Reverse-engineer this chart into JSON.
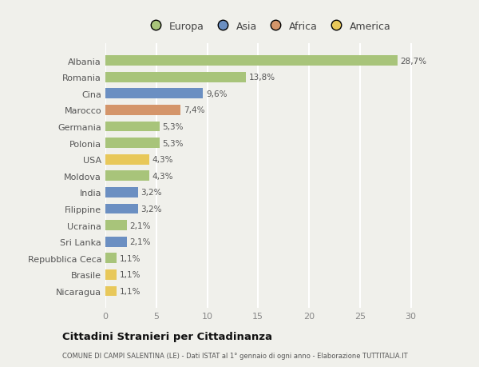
{
  "categories": [
    "Albania",
    "Romania",
    "Cina",
    "Marocco",
    "Germania",
    "Polonia",
    "USA",
    "Moldova",
    "India",
    "Filippine",
    "Ucraina",
    "Sri Lanka",
    "Repubblica Ceca",
    "Brasile",
    "Nicaragua"
  ],
  "values": [
    28.7,
    13.8,
    9.6,
    7.4,
    5.3,
    5.3,
    4.3,
    4.3,
    3.2,
    3.2,
    2.1,
    2.1,
    1.1,
    1.1,
    1.1
  ],
  "labels": [
    "28,7%",
    "13,8%",
    "9,6%",
    "7,4%",
    "5,3%",
    "5,3%",
    "4,3%",
    "4,3%",
    "3,2%",
    "3,2%",
    "2,1%",
    "2,1%",
    "1,1%",
    "1,1%",
    "1,1%"
  ],
  "continents": [
    "Europa",
    "Europa",
    "Asia",
    "Africa",
    "Europa",
    "Europa",
    "America",
    "Europa",
    "Asia",
    "Asia",
    "Europa",
    "Asia",
    "Europa",
    "America",
    "America"
  ],
  "colors": {
    "Europa": "#a8c47a",
    "Asia": "#6b8fc2",
    "Africa": "#d4956a",
    "America": "#e8c85a"
  },
  "legend_order": [
    "Europa",
    "Asia",
    "Africa",
    "America"
  ],
  "legend_colors": [
    "#a8c47a",
    "#6b8fc2",
    "#d4956a",
    "#e8c85a"
  ],
  "title": "Cittadini Stranieri per Cittadinanza",
  "subtitle": "COMUNE DI CAMPI SALENTINA (LE) - Dati ISTAT al 1° gennaio di ogni anno - Elaborazione TUTTITALIA.IT",
  "xlim": [
    0,
    32
  ],
  "xticks": [
    0,
    5,
    10,
    15,
    20,
    25,
    30
  ],
  "background_color": "#f0f0eb",
  "grid_color": "#ffffff",
  "label_color": "#555555",
  "ytick_color": "#555555"
}
